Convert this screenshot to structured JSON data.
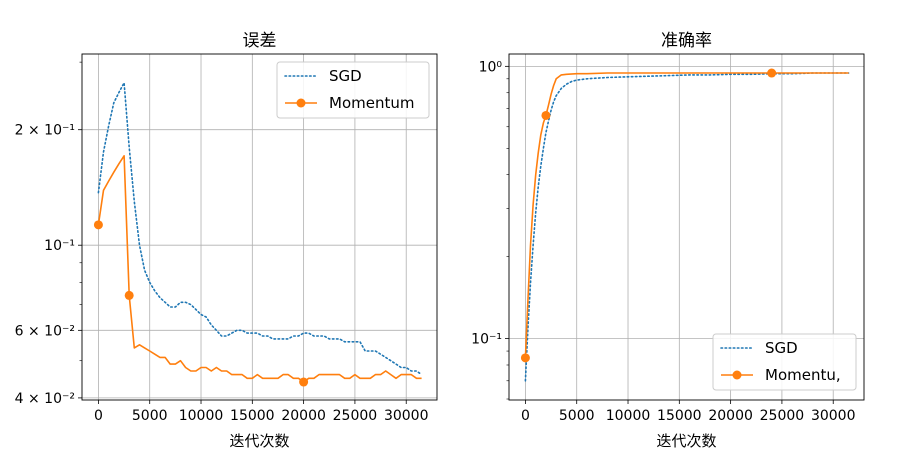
{
  "chart_data": [
    {
      "type": "line",
      "title": "误差",
      "xlabel": "迭代次数",
      "ylabel": "",
      "yscale": "log",
      "xlim": [
        -1600,
        33000
      ],
      "ylim": [
        0.0395,
        0.315
      ],
      "xticks": [
        0,
        5000,
        10000,
        15000,
        20000,
        25000,
        30000
      ],
      "xtick_labels": [
        "0",
        "5000",
        "10000",
        "15000",
        "20000",
        "25000",
        "30000"
      ],
      "yticks": [
        0.04,
        0.06,
        0.1,
        0.2
      ],
      "ytick_labels": [
        "4 × 10⁻²",
        "6 × 10⁻²",
        "10⁻¹",
        "2 × 10⁻¹"
      ],
      "grid": true,
      "legend_position": "top-right",
      "series": [
        {
          "name": "SGD",
          "style": "dotted",
          "color": "#1f77b4",
          "x": [
            0,
            500,
            1000,
            1500,
            2000,
            2500,
            3000,
            3500,
            4000,
            4500,
            5000,
            5500,
            6000,
            6500,
            7000,
            7500,
            8000,
            8500,
            9000,
            9500,
            10000,
            10500,
            11000,
            11500,
            12000,
            12500,
            13000,
            13500,
            14000,
            14500,
            15000,
            15500,
            16000,
            16500,
            17000,
            17500,
            18000,
            18500,
            19000,
            19500,
            20000,
            20500,
            21000,
            21500,
            22000,
            22500,
            23000,
            23500,
            24000,
            24500,
            25000,
            25500,
            26000,
            26500,
            27000,
            27500,
            28000,
            28500,
            29000,
            29500,
            30000,
            30500,
            31000,
            31500
          ],
          "values": [
            0.137,
            0.175,
            0.205,
            0.235,
            0.25,
            0.265,
            0.18,
            0.13,
            0.1,
            0.086,
            0.08,
            0.076,
            0.073,
            0.071,
            0.069,
            0.069,
            0.071,
            0.071,
            0.07,
            0.068,
            0.066,
            0.065,
            0.062,
            0.06,
            0.058,
            0.058,
            0.059,
            0.06,
            0.06,
            0.059,
            0.059,
            0.059,
            0.058,
            0.058,
            0.057,
            0.057,
            0.057,
            0.057,
            0.058,
            0.058,
            0.059,
            0.059,
            0.058,
            0.058,
            0.058,
            0.057,
            0.057,
            0.057,
            0.056,
            0.056,
            0.056,
            0.056,
            0.053,
            0.053,
            0.053,
            0.052,
            0.051,
            0.05,
            0.049,
            0.048,
            0.048,
            0.047,
            0.047,
            0.046
          ]
        },
        {
          "name": "Momentum",
          "style": "solid-with-markers",
          "color": "#ff7f0e",
          "x": [
            0,
            500,
            1000,
            1500,
            2000,
            2500,
            3000,
            3500,
            4000,
            4500,
            5000,
            5500,
            6000,
            6500,
            7000,
            7500,
            8000,
            8500,
            9000,
            9500,
            10000,
            10500,
            11000,
            11500,
            12000,
            12500,
            13000,
            13500,
            14000,
            14500,
            15000,
            15500,
            16000,
            16500,
            17000,
            17500,
            18000,
            18500,
            19000,
            19500,
            20000,
            20500,
            21000,
            21500,
            22000,
            22500,
            23000,
            23500,
            24000,
            24500,
            25000,
            25500,
            26000,
            26500,
            27000,
            27500,
            28000,
            28500,
            29000,
            29500,
            30000,
            30500,
            31000,
            31500
          ],
          "values": [
            0.113,
            0.139,
            0.147,
            0.155,
            0.163,
            0.171,
            0.074,
            0.054,
            0.055,
            0.054,
            0.053,
            0.052,
            0.051,
            0.051,
            0.049,
            0.049,
            0.05,
            0.048,
            0.047,
            0.047,
            0.048,
            0.048,
            0.047,
            0.048,
            0.047,
            0.047,
            0.046,
            0.046,
            0.046,
            0.045,
            0.045,
            0.046,
            0.045,
            0.045,
            0.045,
            0.045,
            0.046,
            0.046,
            0.045,
            0.045,
            0.044,
            0.045,
            0.045,
            0.046,
            0.046,
            0.046,
            0.046,
            0.046,
            0.045,
            0.045,
            0.046,
            0.045,
            0.045,
            0.045,
            0.046,
            0.046,
            0.047,
            0.046,
            0.045,
            0.046,
            0.046,
            0.046,
            0.045,
            0.045
          ],
          "markers_at": [
            0,
            3000,
            20000
          ]
        }
      ]
    },
    {
      "type": "line",
      "title": "准确率",
      "xlabel": "迭代次数",
      "ylabel": "",
      "yscale": "log",
      "xlim": [
        -1600,
        33000
      ],
      "ylim": [
        0.0595,
        1.11
      ],
      "xticks": [
        0,
        5000,
        10000,
        15000,
        20000,
        25000,
        30000
      ],
      "xtick_labels": [
        "0",
        "5000",
        "10000",
        "15000",
        "20000",
        "25000",
        "30000"
      ],
      "yticks": [
        0.1,
        1
      ],
      "ytick_labels": [
        "10⁻¹",
        "10⁰"
      ],
      "grid": true,
      "legend_position": "bottom-right",
      "series": [
        {
          "name": "SGD",
          "style": "dotted",
          "color": "#1f77b4",
          "x": [
            0,
            250,
            500,
            750,
            1000,
            1250,
            1500,
            1750,
            2000,
            2250,
            2500,
            2750,
            3000,
            3500,
            4000,
            4500,
            5000,
            6000,
            7000,
            8000,
            10000,
            12000,
            14000,
            16000,
            18000,
            20000,
            22000,
            24000,
            26000,
            28000,
            30000,
            31500
          ],
          "values": [
            0.07,
            0.11,
            0.16,
            0.22,
            0.29,
            0.36,
            0.43,
            0.5,
            0.57,
            0.63,
            0.69,
            0.74,
            0.78,
            0.83,
            0.86,
            0.88,
            0.89,
            0.9,
            0.905,
            0.91,
            0.915,
            0.92,
            0.925,
            0.93,
            0.93,
            0.935,
            0.935,
            0.94,
            0.94,
            0.945,
            0.945,
            0.945
          ]
        },
        {
          "name": "Momentu,",
          "style": "solid-with-markers",
          "color": "#ff7f0e",
          "x": [
            0,
            250,
            500,
            750,
            1000,
            1250,
            1500,
            1750,
            2000,
            2250,
            2500,
            2750,
            3000,
            3500,
            4000,
            5000,
            6000,
            8000,
            10000,
            12000,
            14000,
            16000,
            18000,
            20000,
            22000,
            24000,
            26000,
            28000,
            30000,
            31500
          ],
          "values": [
            0.085,
            0.14,
            0.22,
            0.31,
            0.4,
            0.48,
            0.56,
            0.62,
            0.66,
            0.72,
            0.79,
            0.85,
            0.9,
            0.93,
            0.935,
            0.94,
            0.94,
            0.945,
            0.945,
            0.945,
            0.945,
            0.945,
            0.945,
            0.945,
            0.945,
            0.945,
            0.945,
            0.945,
            0.945,
            0.945
          ],
          "markers_at": [
            0,
            2000,
            24000
          ]
        }
      ]
    }
  ]
}
